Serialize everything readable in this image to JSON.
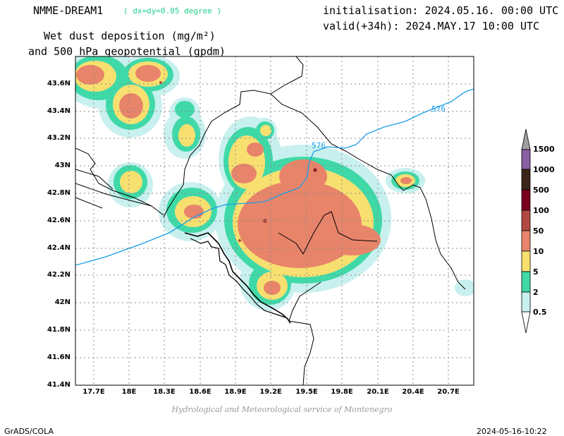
{
  "header": {
    "model": "NMME-DREAM1",
    "resolution": "( dx=dy=0.05 degree )",
    "initialisation": "initialisation: 2024.05.16. 00:00 UTC",
    "valid": "valid(+34h): 2024.MAY.17 10:00 UTC",
    "title_line1": "Wet dust deposition (mg/m²)",
    "title_line2": "and 500 hPa geopotential (gpdm)"
  },
  "map": {
    "lat_labels": [
      "43.6N",
      "43.4N",
      "43.2N",
      "43N",
      "42.8N",
      "42.6N",
      "42.4N",
      "42.2N",
      "42N",
      "41.8N",
      "41.6N",
      "41.4N"
    ],
    "lon_labels": [
      "17.7E",
      "18E",
      "18.3E",
      "18.6E",
      "18.9E",
      "19.2E",
      "19.5E",
      "19.8E",
      "20.1E",
      "20.4E",
      "20.7E"
    ],
    "contour_labels": [
      "576",
      "576"
    ],
    "contour_color": "#1a9ee8"
  },
  "colorbar": {
    "levels": [
      "1500",
      "1000",
      "500",
      "100",
      "50",
      "10",
      "5",
      "2",
      "0.5"
    ],
    "colors": [
      "#a0a0a0",
      "#8a5fa0",
      "#3a2518",
      "#7a0020",
      "#b04a40",
      "#e8846a",
      "#f8e070",
      "#3fd9a8",
      "#c8f0ee"
    ]
  },
  "footer": {
    "credit": "Hydrological and Meteorological service of Montenegro",
    "software": "GrADS/COLA",
    "timestamp": "2024-05-16-10:22"
  }
}
